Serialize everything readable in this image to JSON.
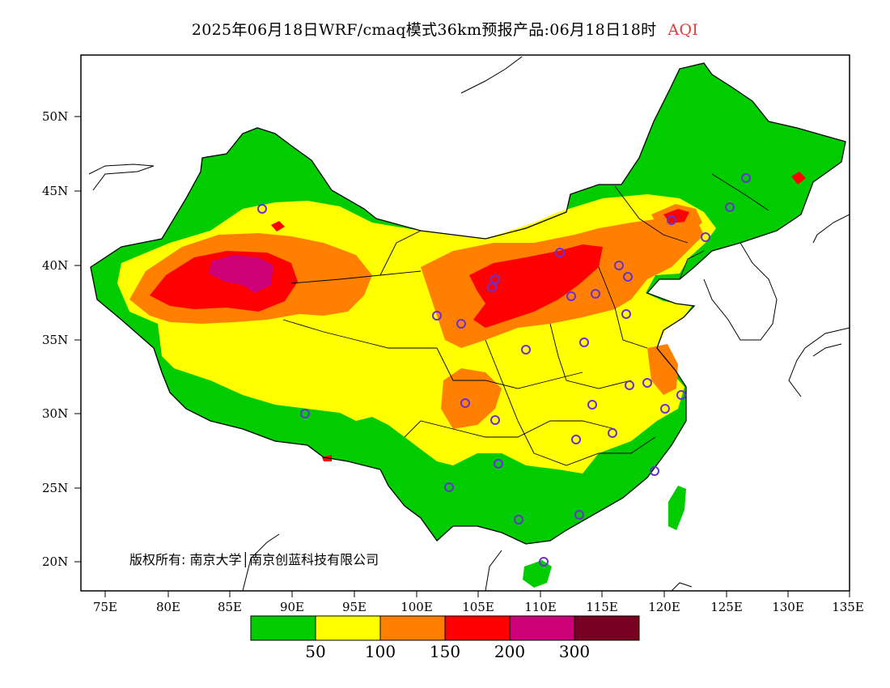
{
  "title": {
    "main": "2025年06月18日WRF/cmaq模式36km预报产品:06月18日18时",
    "variable": "AQI"
  },
  "copyright": "版权所有: 南京大学│南京创蓝科技有限公司",
  "axes": {
    "lat_ticks": [
      "50N",
      "45N",
      "40N",
      "35N",
      "30N",
      "25N",
      "20N"
    ],
    "lon_ticks": [
      "75E",
      "80E",
      "85E",
      "90E",
      "95E",
      "100E",
      "105E",
      "110E",
      "115E",
      "120E",
      "125E",
      "130E",
      "135E"
    ]
  },
  "colorbar": {
    "colors": [
      "#00cc00",
      "#ffff00",
      "#ff8000",
      "#ff0000",
      "#cc0077",
      "#770022"
    ],
    "labels": [
      "50",
      "100",
      "150",
      "200",
      "300"
    ]
  },
  "colors": {
    "good": "#00cc00",
    "moderate": "#ffff00",
    "sensitive": "#ff8000",
    "unhealthy": "#ff0000",
    "very_unhealthy": "#cc0077",
    "hazardous": "#770022",
    "station_marker": "#6a2fd6"
  }
}
